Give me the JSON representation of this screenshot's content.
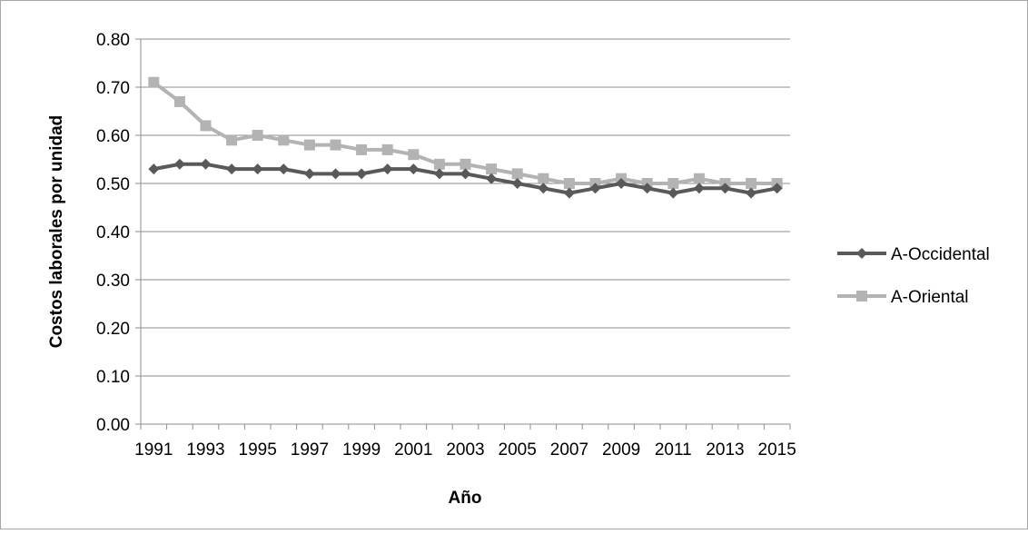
{
  "chart_data": {
    "type": "line",
    "title": "",
    "xlabel": "Año",
    "ylabel": "Costos laborales por unidad",
    "ylim": [
      0,
      0.8
    ],
    "y_ticks": [
      "0.00",
      "0.10",
      "0.20",
      "0.30",
      "0.40",
      "0.50",
      "0.60",
      "0.70",
      "0.80"
    ],
    "x_tick_labels": [
      "1991",
      "1993",
      "1995",
      "1997",
      "1999",
      "2001",
      "2003",
      "2005",
      "2007",
      "2009",
      "2011",
      "2013",
      "2015"
    ],
    "x": [
      1991,
      1992,
      1993,
      1994,
      1995,
      1996,
      1997,
      1998,
      1999,
      2000,
      2001,
      2002,
      2003,
      2004,
      2005,
      2006,
      2007,
      2008,
      2009,
      2010,
      2011,
      2012,
      2013,
      2014,
      2015
    ],
    "grid": "horizontal",
    "legend_position": "right",
    "series": [
      {
        "name": "A-Occidental",
        "color": "#595959",
        "marker": "diamond",
        "values": [
          0.53,
          0.54,
          0.54,
          0.53,
          0.53,
          0.53,
          0.52,
          0.52,
          0.52,
          0.53,
          0.53,
          0.52,
          0.52,
          0.51,
          0.5,
          0.49,
          0.48,
          0.49,
          0.5,
          0.49,
          0.48,
          0.49,
          0.49,
          0.48,
          0.49
        ]
      },
      {
        "name": "A-Oriental",
        "color": "#b3b3b3",
        "marker": "square",
        "values": [
          0.71,
          0.67,
          0.62,
          0.59,
          0.6,
          0.59,
          0.58,
          0.58,
          0.57,
          0.57,
          0.56,
          0.54,
          0.54,
          0.53,
          0.52,
          0.51,
          0.5,
          0.5,
          0.51,
          0.5,
          0.5,
          0.51,
          0.5,
          0.5,
          0.5
        ]
      }
    ]
  }
}
